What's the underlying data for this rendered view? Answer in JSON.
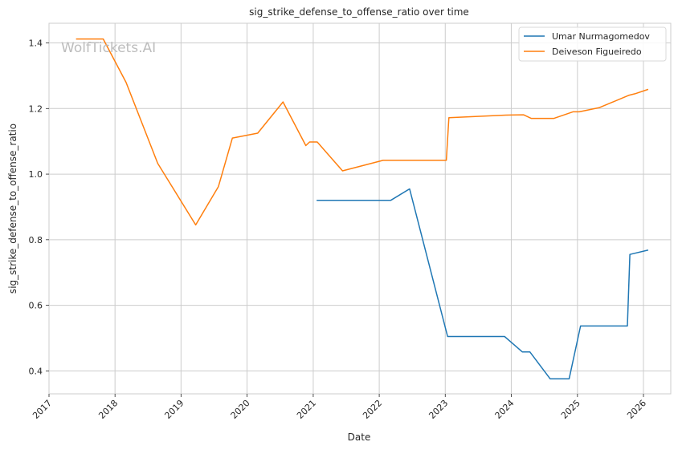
{
  "chart_data": {
    "type": "line",
    "title": "sig_strike_defense_to_offense_ratio over time",
    "xlabel": "Date",
    "ylabel": "sig_strike_defense_to_offense_ratio",
    "watermark": "WolfTickets.AI",
    "x_ticks": [
      "2017",
      "2018",
      "2019",
      "2020",
      "2021",
      "2022",
      "2023",
      "2024",
      "2025",
      "2026"
    ],
    "y_ticks": [
      "0.4",
      "0.6",
      "0.8",
      "1.0",
      "1.2",
      "1.4"
    ],
    "xlim": [
      "2017-01-01",
      "2026-06-01"
    ],
    "ylim": [
      0.33,
      1.46
    ],
    "grid": true,
    "legend_position": "top-right",
    "series": [
      {
        "name": "Umar Nurmagomedov",
        "color": "#1f77b4",
        "points": [
          [
            "2021-01-23",
            0.92
          ],
          [
            "2022-03-05",
            0.92
          ],
          [
            "2022-06-18",
            0.955
          ],
          [
            "2023-01-14",
            0.505
          ],
          [
            "2023-11-25",
            0.505
          ],
          [
            "2024-03-02",
            0.458
          ],
          [
            "2024-04-13",
            0.458
          ],
          [
            "2024-08-03",
            0.376
          ],
          [
            "2024-11-16",
            0.376
          ],
          [
            "2025-01-18",
            0.537
          ],
          [
            "2025-10-04",
            0.537
          ],
          [
            "2025-10-18",
            0.755
          ],
          [
            "2026-01-24",
            0.768
          ]
        ]
      },
      {
        "name": "Deiveson Figueiredo",
        "color": "#ff7f0e",
        "points": [
          [
            "2017-06-03",
            1.412
          ],
          [
            "2017-10-28",
            1.412
          ],
          [
            "2018-03-03",
            1.28
          ],
          [
            "2018-08-25",
            1.033
          ],
          [
            "2019-03-23",
            0.845
          ],
          [
            "2019-07-27",
            0.962
          ],
          [
            "2019-10-12",
            1.11
          ],
          [
            "2020-02-29",
            1.125
          ],
          [
            "2020-07-18",
            1.22
          ],
          [
            "2020-11-21",
            1.087
          ],
          [
            "2020-12-12",
            1.098
          ],
          [
            "2021-01-23",
            1.098
          ],
          [
            "2021-06-12",
            1.01
          ],
          [
            "2022-01-22",
            1.042
          ],
          [
            "2023-01-07",
            1.042
          ],
          [
            "2023-01-21",
            1.172
          ],
          [
            "2023-12-02",
            1.18
          ],
          [
            "2024-03-09",
            1.181
          ],
          [
            "2024-04-20",
            1.17
          ],
          [
            "2024-08-24",
            1.17
          ],
          [
            "2024-12-07",
            1.19
          ],
          [
            "2025-01-11",
            1.19
          ],
          [
            "2025-05-03",
            1.203
          ],
          [
            "2025-10-11",
            1.24
          ],
          [
            "2025-11-15",
            1.245
          ],
          [
            "2026-01-24",
            1.258
          ]
        ]
      }
    ]
  }
}
